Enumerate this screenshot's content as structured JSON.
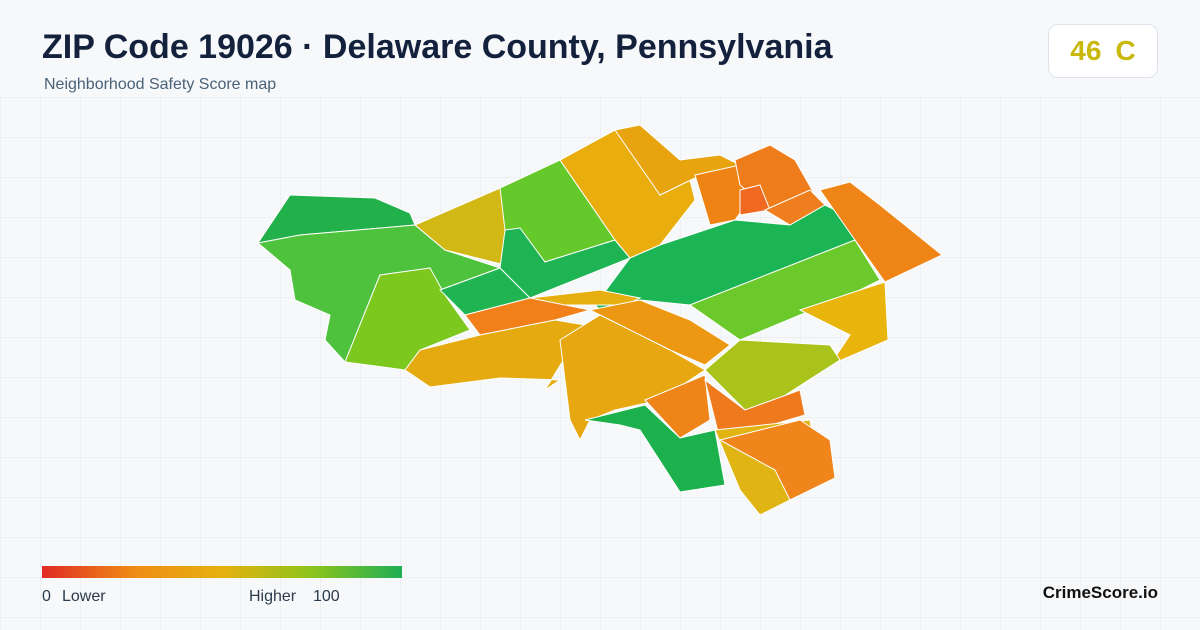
{
  "header": {
    "title": "ZIP Code 19026 · Delaware County, Pennsylvania",
    "subtitle": "Neighborhood Safety Score map",
    "score": 46,
    "grade": "C"
  },
  "legend": {
    "min": 0,
    "low_label": "Lower",
    "high_label": "Higher",
    "max": 100
  },
  "footer": {
    "brand": "CrimeScore.io"
  }
}
